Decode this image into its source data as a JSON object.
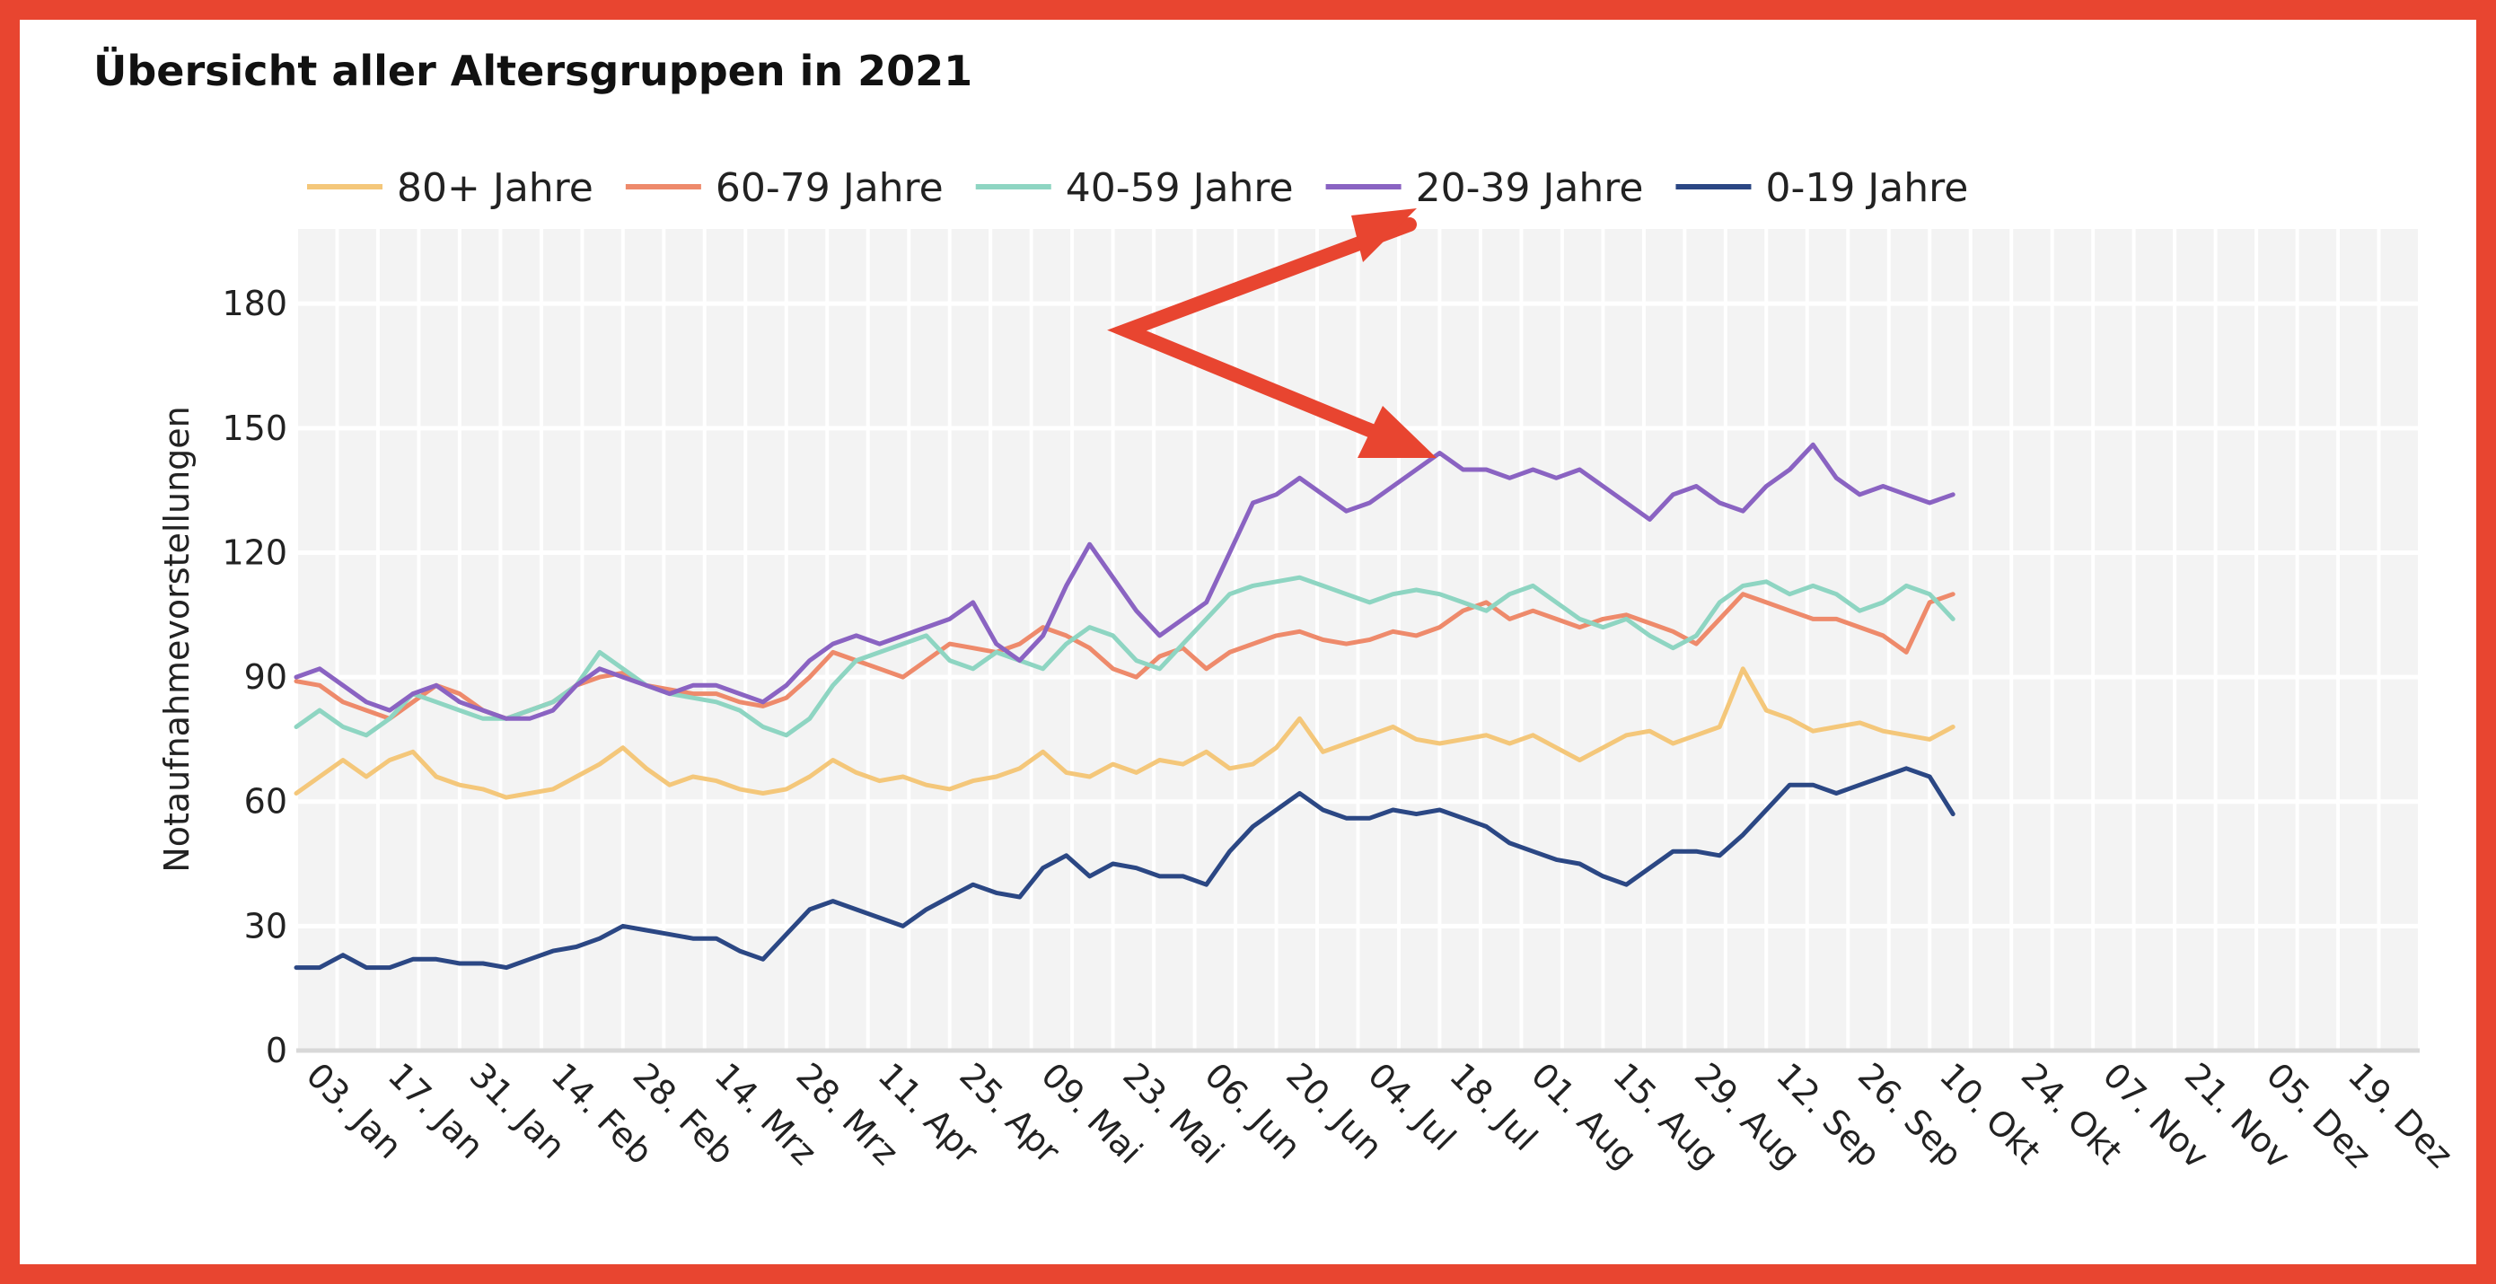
{
  "chart_data": {
    "type": "line",
    "title": "Übersicht aller Altersgruppen in 2021",
    "ylabel": "Notaufnahmevorstellungen",
    "xlabel": "",
    "ylim": [
      0,
      198
    ],
    "yticks": [
      0,
      30,
      60,
      90,
      120,
      150,
      180
    ],
    "xlim_days": [
      0,
      364
    ],
    "x_date_start": "2021-01-01",
    "xticks": [
      {
        "label": "03. Jan",
        "day": 2
      },
      {
        "label": "17. Jan",
        "day": 16
      },
      {
        "label": "31. Jan",
        "day": 30
      },
      {
        "label": "14. Feb",
        "day": 44
      },
      {
        "label": "28. Feb",
        "day": 58
      },
      {
        "label": "14. Mrz",
        "day": 72
      },
      {
        "label": "28. Mrz",
        "day": 86
      },
      {
        "label": "11. Apr",
        "day": 100
      },
      {
        "label": "25. Apr",
        "day": 114
      },
      {
        "label": "09. Mai",
        "day": 128
      },
      {
        "label": "23. Mai",
        "day": 142
      },
      {
        "label": "06. Jun",
        "day": 156
      },
      {
        "label": "20. Jun",
        "day": 170
      },
      {
        "label": "04. Jul",
        "day": 184
      },
      {
        "label": "18. Jul",
        "day": 198
      },
      {
        "label": "01. Aug",
        "day": 212
      },
      {
        "label": "15. Aug",
        "day": 226
      },
      {
        "label": "29. Aug",
        "day": 240
      },
      {
        "label": "12. Sep",
        "day": 254
      },
      {
        "label": "26. Sep",
        "day": 268
      },
      {
        "label": "10. Okt",
        "day": 282
      },
      {
        "label": "24. Okt",
        "day": 296
      },
      {
        "label": "07. Nov",
        "day": 310
      },
      {
        "label": "21. Nov",
        "day": 324
      },
      {
        "label": "05. Dez",
        "day": 338
      },
      {
        "label": "19. Dez",
        "day": 352
      }
    ],
    "grid": true,
    "legend_position": "top",
    "series": [
      {
        "name": "80+ Jahre",
        "color": "#f4c77a",
        "x": [
          0,
          4,
          8,
          12,
          16,
          20,
          24,
          28,
          32,
          36,
          40,
          44,
          48,
          52,
          56,
          60,
          64,
          68,
          72,
          76,
          80,
          84,
          88,
          92,
          96,
          100,
          104,
          108,
          112,
          116,
          120,
          124,
          128,
          132,
          136,
          140,
          144,
          148,
          152,
          156,
          160,
          164,
          168,
          172,
          176,
          180,
          184,
          188,
          192,
          196,
          200,
          204,
          208,
          212,
          216,
          220,
          224,
          228,
          232,
          236,
          240,
          244,
          248,
          252,
          256,
          260,
          264,
          268,
          272,
          276,
          280,
          284
        ],
        "y": [
          62,
          66,
          70,
          66,
          70,
          72,
          66,
          64,
          63,
          61,
          62,
          63,
          66,
          69,
          73,
          68,
          64,
          66,
          65,
          63,
          62,
          63,
          66,
          70,
          67,
          65,
          66,
          64,
          63,
          65,
          66,
          68,
          72,
          67,
          66,
          69,
          67,
          70,
          69,
          72,
          68,
          69,
          73,
          80,
          72,
          74,
          76,
          78,
          75,
          74,
          75,
          76,
          74,
          76,
          73,
          70,
          73,
          76,
          77,
          74,
          76,
          78,
          92,
          82,
          80,
          77,
          78,
          79,
          77,
          76,
          75,
          78
        ]
      },
      {
        "name": "60-79 Jahre",
        "color": "#ee8a6b",
        "x": [
          0,
          4,
          8,
          12,
          16,
          20,
          24,
          28,
          32,
          36,
          40,
          44,
          48,
          52,
          56,
          60,
          64,
          68,
          72,
          76,
          80,
          84,
          88,
          92,
          96,
          100,
          104,
          108,
          112,
          116,
          120,
          124,
          128,
          132,
          136,
          140,
          144,
          148,
          152,
          156,
          160,
          164,
          168,
          172,
          176,
          180,
          184,
          188,
          192,
          196,
          200,
          204,
          208,
          212,
          216,
          220,
          224,
          228,
          232,
          236,
          240,
          244,
          248,
          252,
          256,
          260,
          264,
          268,
          272,
          276,
          280,
          284
        ],
        "y": [
          89,
          88,
          84,
          82,
          80,
          84,
          88,
          86,
          82,
          80,
          82,
          84,
          88,
          90,
          91,
          88,
          87,
          86,
          86,
          84,
          83,
          85,
          90,
          96,
          94,
          92,
          90,
          94,
          98,
          97,
          96,
          98,
          102,
          100,
          97,
          92,
          90,
          95,
          97,
          92,
          96,
          98,
          100,
          101,
          99,
          98,
          99,
          101,
          100,
          102,
          106,
          108,
          104,
          106,
          104,
          102,
          104,
          105,
          103,
          101,
          98,
          104,
          110,
          108,
          106,
          104,
          104,
          102,
          100,
          96,
          108,
          110
        ]
      },
      {
        "name": "40-59 Jahre",
        "color": "#8ed5c2",
        "x": [
          0,
          4,
          8,
          12,
          16,
          20,
          24,
          28,
          32,
          36,
          40,
          44,
          48,
          52,
          56,
          60,
          64,
          68,
          72,
          76,
          80,
          84,
          88,
          92,
          96,
          100,
          104,
          108,
          112,
          116,
          120,
          124,
          128,
          132,
          136,
          140,
          144,
          148,
          152,
          156,
          160,
          164,
          168,
          172,
          176,
          180,
          184,
          188,
          192,
          196,
          200,
          204,
          208,
          212,
          216,
          220,
          224,
          228,
          232,
          236,
          240,
          244,
          248,
          252,
          256,
          260,
          264,
          268,
          272,
          276,
          280,
          284
        ],
        "y": [
          78,
          82,
          78,
          76,
          80,
          86,
          84,
          82,
          80,
          80,
          82,
          84,
          88,
          96,
          92,
          88,
          86,
          85,
          84,
          82,
          78,
          76,
          80,
          88,
          94,
          96,
          98,
          100,
          94,
          92,
          96,
          94,
          92,
          98,
          102,
          100,
          94,
          92,
          98,
          104,
          110,
          112,
          113,
          114,
          112,
          110,
          108,
          110,
          111,
          110,
          108,
          106,
          110,
          112,
          108,
          104,
          102,
          104,
          100,
          97,
          100,
          108,
          112,
          113,
          110,
          112,
          110,
          106,
          108,
          112,
          110,
          104
        ]
      },
      {
        "name": "20-39 Jahre",
        "color": "#8a63c2",
        "x": [
          0,
          4,
          8,
          12,
          16,
          20,
          24,
          28,
          32,
          36,
          40,
          44,
          48,
          52,
          56,
          60,
          64,
          68,
          72,
          76,
          80,
          84,
          88,
          92,
          96,
          100,
          104,
          108,
          112,
          116,
          120,
          124,
          128,
          132,
          136,
          140,
          144,
          148,
          152,
          156,
          160,
          164,
          168,
          172,
          176,
          180,
          184,
          188,
          192,
          196,
          200,
          204,
          208,
          212,
          216,
          220,
          224,
          228,
          232,
          236,
          240,
          244,
          248,
          252,
          256,
          260,
          264,
          268,
          272,
          276,
          280,
          284
        ],
        "y": [
          90,
          92,
          88,
          84,
          82,
          86,
          88,
          84,
          82,
          80,
          80,
          82,
          88,
          92,
          90,
          88,
          86,
          88,
          88,
          86,
          84,
          88,
          94,
          98,
          100,
          98,
          100,
          102,
          104,
          108,
          98,
          94,
          100,
          112,
          122,
          114,
          106,
          100,
          104,
          108,
          120,
          132,
          134,
          138,
          134,
          130,
          132,
          136,
          140,
          144,
          140,
          140,
          138,
          140,
          138,
          140,
          136,
          132,
          128,
          134,
          136,
          132,
          130,
          136,
          140,
          146,
          138,
          134,
          136,
          134,
          132,
          134
        ]
      },
      {
        "name": "0-19 Jahre",
        "color": "#2b4784",
        "x": [
          0,
          4,
          8,
          12,
          16,
          20,
          24,
          28,
          32,
          36,
          40,
          44,
          48,
          52,
          56,
          60,
          64,
          68,
          72,
          76,
          80,
          84,
          88,
          92,
          96,
          100,
          104,
          108,
          112,
          116,
          120,
          124,
          128,
          132,
          136,
          140,
          144,
          148,
          152,
          156,
          160,
          164,
          168,
          172,
          176,
          180,
          184,
          188,
          192,
          196,
          200,
          204,
          208,
          212,
          216,
          220,
          224,
          228,
          232,
          236,
          240,
          244,
          248,
          252,
          256,
          260,
          264,
          268,
          272,
          276,
          280,
          284
        ],
        "y": [
          20,
          20,
          23,
          20,
          20,
          22,
          22,
          21,
          21,
          20,
          22,
          24,
          25,
          27,
          30,
          29,
          28,
          27,
          27,
          24,
          22,
          28,
          34,
          36,
          34,
          32,
          30,
          34,
          37,
          40,
          38,
          37,
          44,
          47,
          42,
          45,
          44,
          42,
          42,
          40,
          48,
          54,
          58,
          62,
          58,
          56,
          56,
          58,
          57,
          58,
          56,
          54,
          50,
          48,
          46,
          45,
          42,
          40,
          44,
          48,
          48,
          47,
          52,
          58,
          64,
          64,
          62,
          64,
          66,
          68,
          66,
          57
        ]
      }
    ]
  },
  "annotation": {
    "arrow_color": "#e84530"
  }
}
